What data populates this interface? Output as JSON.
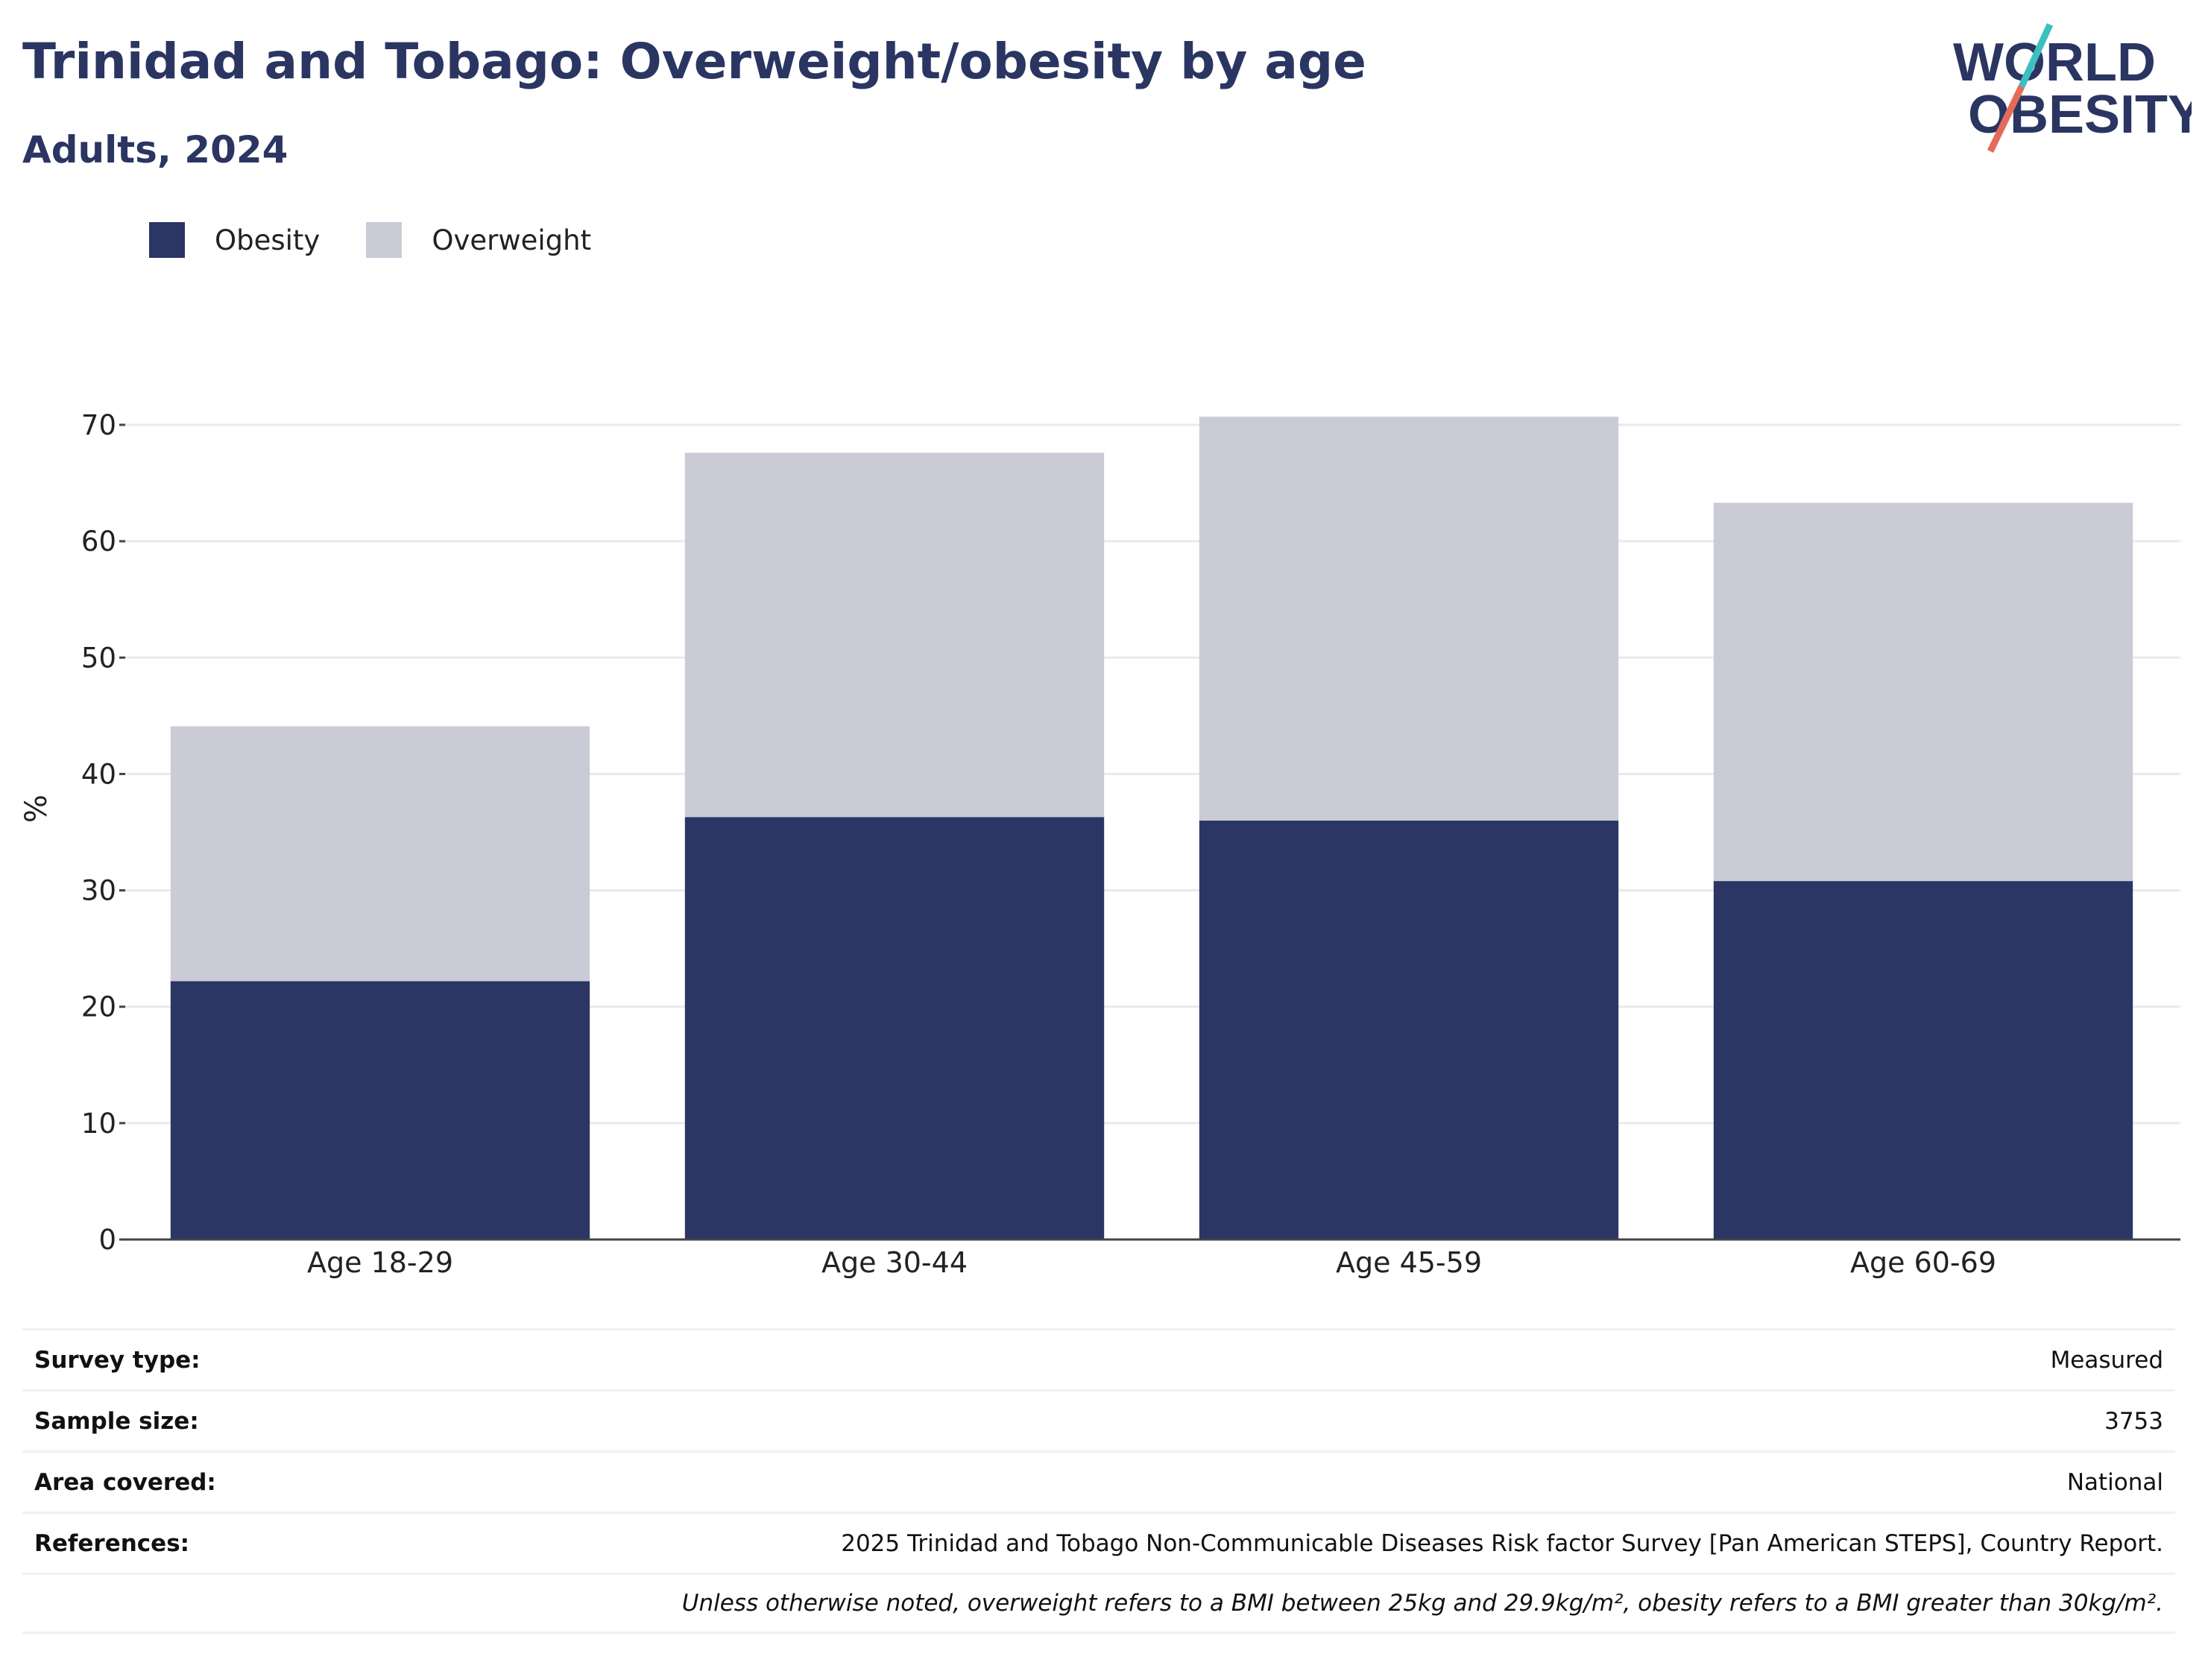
{
  "header": {
    "title": "Trinidad and Tobago: Overweight/obesity by age",
    "subtitle": "Adults, 2024"
  },
  "logo": {
    "line1": "WORLD",
    "line2": "OBESITY"
  },
  "colors": {
    "obesity": "#2b3665",
    "overweight": "#cacbd7",
    "text": "#2a3562",
    "logo_teal": "#3cbfbf",
    "logo_red": "#e46a5a"
  },
  "chart_data": {
    "type": "bar",
    "stacked": true,
    "categories": [
      "Age 18-29",
      "Age 30-44",
      "Age 45-59",
      "Age 60-69"
    ],
    "series": [
      {
        "name": "Obesity",
        "values": [
          22.2,
          36.3,
          36.0,
          30.8
        ]
      },
      {
        "name": "Overweight",
        "values": [
          21.9,
          31.3,
          34.7,
          32.5
        ]
      }
    ],
    "ylabel": "%",
    "ylim": [
      0,
      70
    ],
    "yticks": [
      0,
      10,
      20,
      30,
      40,
      50,
      60,
      70
    ],
    "grid": true,
    "legend_position": "top-left"
  },
  "info": {
    "rows": [
      {
        "label": "Survey type:",
        "value": "Measured"
      },
      {
        "label": "Sample size:",
        "value": "3753"
      },
      {
        "label": "Area covered:",
        "value": "National"
      },
      {
        "label": "References:",
        "value": "2025 Trinidad and Tobago Non-Communicable Diseases Risk factor Survey [Pan American STEPS], Country Report."
      }
    ],
    "note": "Unless otherwise noted, overweight refers to a BMI between 25kg and 29.9kg/m², obesity refers to a BMI greater than 30kg/m²."
  }
}
